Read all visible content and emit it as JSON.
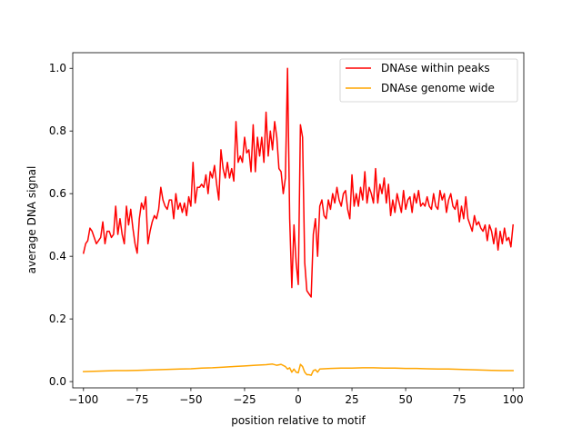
{
  "chart_data": {
    "type": "line",
    "title": "",
    "xlabel": "position relative to motif",
    "ylabel": "average DNA signal",
    "xlim": [
      -105,
      105
    ],
    "ylim": [
      -0.02,
      1.05
    ],
    "xticks": [
      -100,
      -75,
      -50,
      -25,
      0,
      25,
      50,
      75,
      100
    ],
    "xtick_labels": [
      "−100",
      "−75",
      "−50",
      "−25",
      "0",
      "25",
      "50",
      "75",
      "100"
    ],
    "yticks": [
      0.0,
      0.2,
      0.4,
      0.6,
      0.8,
      1.0
    ],
    "ytick_labels": [
      "0.0",
      "0.2",
      "0.4",
      "0.6",
      "0.8",
      "1.0"
    ],
    "grid": false,
    "legend_position": "top-right",
    "series": [
      {
        "name": "DNAse within peaks",
        "color": "#ff0000",
        "points": [
          [
            -100,
            0.41
          ],
          [
            -99,
            0.44
          ],
          [
            -98,
            0.45
          ],
          [
            -97,
            0.49
          ],
          [
            -96,
            0.48
          ],
          [
            -95,
            0.46
          ],
          [
            -94,
            0.44
          ],
          [
            -93,
            0.45
          ],
          [
            -92,
            0.46
          ],
          [
            -91,
            0.51
          ],
          [
            -90,
            0.44
          ],
          [
            -89,
            0.48
          ],
          [
            -88,
            0.48
          ],
          [
            -87,
            0.46
          ],
          [
            -86,
            0.47
          ],
          [
            -85,
            0.56
          ],
          [
            -84,
            0.47
          ],
          [
            -83,
            0.52
          ],
          [
            -82,
            0.47
          ],
          [
            -81,
            0.44
          ],
          [
            -80,
            0.56
          ],
          [
            -79,
            0.5
          ],
          [
            -78,
            0.55
          ],
          [
            -77,
            0.49
          ],
          [
            -76,
            0.44
          ],
          [
            -75,
            0.41
          ],
          [
            -74,
            0.52
          ],
          [
            -73,
            0.57
          ],
          [
            -72,
            0.55
          ],
          [
            -71,
            0.59
          ],
          [
            -70,
            0.44
          ],
          [
            -69,
            0.48
          ],
          [
            -68,
            0.51
          ],
          [
            -67,
            0.53
          ],
          [
            -66,
            0.52
          ],
          [
            -65,
            0.55
          ],
          [
            -64,
            0.62
          ],
          [
            -63,
            0.58
          ],
          [
            -62,
            0.56
          ],
          [
            -61,
            0.55
          ],
          [
            -60,
            0.58
          ],
          [
            -59,
            0.58
          ],
          [
            -58,
            0.52
          ],
          [
            -57,
            0.6
          ],
          [
            -56,
            0.55
          ],
          [
            -55,
            0.57
          ],
          [
            -54,
            0.54
          ],
          [
            -53,
            0.57
          ],
          [
            -52,
            0.53
          ],
          [
            -51,
            0.59
          ],
          [
            -50,
            0.56
          ],
          [
            -49,
            0.7
          ],
          [
            -48,
            0.57
          ],
          [
            -47,
            0.62
          ],
          [
            -46,
            0.62
          ],
          [
            -45,
            0.63
          ],
          [
            -44,
            0.62
          ],
          [
            -43,
            0.66
          ],
          [
            -42,
            0.6
          ],
          [
            -41,
            0.67
          ],
          [
            -40,
            0.65
          ],
          [
            -39,
            0.69
          ],
          [
            -38,
            0.63
          ],
          [
            -37,
            0.58
          ],
          [
            -36,
            0.74
          ],
          [
            -35,
            0.68
          ],
          [
            -34,
            0.65
          ],
          [
            -33,
            0.7
          ],
          [
            -32,
            0.65
          ],
          [
            -31,
            0.68
          ],
          [
            -30,
            0.64
          ],
          [
            -29,
            0.83
          ],
          [
            -28,
            0.7
          ],
          [
            -27,
            0.72
          ],
          [
            -26,
            0.7
          ],
          [
            -25,
            0.78
          ],
          [
            -24,
            0.73
          ],
          [
            -23,
            0.74
          ],
          [
            -22,
            0.67
          ],
          [
            -21,
            0.82
          ],
          [
            -20,
            0.67
          ],
          [
            -19,
            0.78
          ],
          [
            -18,
            0.72
          ],
          [
            -17,
            0.78
          ],
          [
            -16,
            0.7
          ],
          [
            -15,
            0.86
          ],
          [
            -14,
            0.72
          ],
          [
            -13,
            0.8
          ],
          [
            -12,
            0.74
          ],
          [
            -11,
            0.83
          ],
          [
            -10,
            0.78
          ],
          [
            -9,
            0.68
          ],
          [
            -8,
            0.67
          ],
          [
            -7,
            0.6
          ],
          [
            -6,
            0.65
          ],
          [
            -5,
            1.0
          ],
          [
            -4,
            0.52
          ],
          [
            -3,
            0.3
          ],
          [
            -2,
            0.5
          ],
          [
            -1,
            0.38
          ],
          [
            0,
            0.31
          ],
          [
            1,
            0.82
          ],
          [
            2,
            0.78
          ],
          [
            3,
            0.38
          ],
          [
            4,
            0.29
          ],
          [
            5,
            0.28
          ],
          [
            6,
            0.27
          ],
          [
            7,
            0.47
          ],
          [
            8,
            0.52
          ],
          [
            9,
            0.4
          ],
          [
            10,
            0.56
          ],
          [
            11,
            0.58
          ],
          [
            12,
            0.53
          ],
          [
            13,
            0.52
          ],
          [
            14,
            0.58
          ],
          [
            15,
            0.55
          ],
          [
            16,
            0.6
          ],
          [
            17,
            0.57
          ],
          [
            18,
            0.62
          ],
          [
            19,
            0.58
          ],
          [
            20,
            0.56
          ],
          [
            21,
            0.6
          ],
          [
            22,
            0.61
          ],
          [
            23,
            0.55
          ],
          [
            24,
            0.52
          ],
          [
            25,
            0.66
          ],
          [
            26,
            0.56
          ],
          [
            27,
            0.6
          ],
          [
            28,
            0.56
          ],
          [
            29,
            0.62
          ],
          [
            30,
            0.58
          ],
          [
            31,
            0.67
          ],
          [
            32,
            0.57
          ],
          [
            33,
            0.62
          ],
          [
            34,
            0.6
          ],
          [
            35,
            0.57
          ],
          [
            36,
            0.68
          ],
          [
            37,
            0.57
          ],
          [
            38,
            0.63
          ],
          [
            39,
            0.6
          ],
          [
            40,
            0.65
          ],
          [
            41,
            0.57
          ],
          [
            42,
            0.63
          ],
          [
            43,
            0.53
          ],
          [
            44,
            0.58
          ],
          [
            45,
            0.54
          ],
          [
            46,
            0.6
          ],
          [
            47,
            0.57
          ],
          [
            48,
            0.54
          ],
          [
            49,
            0.61
          ],
          [
            50,
            0.55
          ],
          [
            51,
            0.58
          ],
          [
            52,
            0.59
          ],
          [
            53,
            0.54
          ],
          [
            54,
            0.6
          ],
          [
            55,
            0.57
          ],
          [
            56,
            0.61
          ],
          [
            57,
            0.56
          ],
          [
            58,
            0.57
          ],
          [
            59,
            0.56
          ],
          [
            60,
            0.59
          ],
          [
            61,
            0.56
          ],
          [
            62,
            0.55
          ],
          [
            63,
            0.6
          ],
          [
            64,
            0.56
          ],
          [
            65,
            0.55
          ],
          [
            66,
            0.61
          ],
          [
            67,
            0.58
          ],
          [
            68,
            0.6
          ],
          [
            69,
            0.54
          ],
          [
            70,
            0.58
          ],
          [
            71,
            0.6
          ],
          [
            72,
            0.56
          ],
          [
            73,
            0.55
          ],
          [
            74,
            0.58
          ],
          [
            75,
            0.51
          ],
          [
            76,
            0.56
          ],
          [
            77,
            0.52
          ],
          [
            78,
            0.59
          ],
          [
            79,
            0.52
          ],
          [
            80,
            0.5
          ],
          [
            81,
            0.48
          ],
          [
            82,
            0.53
          ],
          [
            83,
            0.5
          ],
          [
            84,
            0.51
          ],
          [
            85,
            0.49
          ],
          [
            86,
            0.48
          ],
          [
            87,
            0.5
          ],
          [
            88,
            0.45
          ],
          [
            89,
            0.5
          ],
          [
            90,
            0.48
          ],
          [
            91,
            0.44
          ],
          [
            92,
            0.49
          ],
          [
            93,
            0.42
          ],
          [
            94,
            0.48
          ],
          [
            95,
            0.44
          ],
          [
            96,
            0.49
          ],
          [
            97,
            0.45
          ],
          [
            98,
            0.46
          ],
          [
            99,
            0.43
          ],
          [
            100,
            0.5
          ]
        ]
      },
      {
        "name": "DNAse genome wide",
        "color": "#ffa500",
        "points": [
          [
            -100,
            0.032
          ],
          [
            -95,
            0.033
          ],
          [
            -90,
            0.034
          ],
          [
            -85,
            0.035
          ],
          [
            -80,
            0.035
          ],
          [
            -75,
            0.036
          ],
          [
            -70,
            0.037
          ],
          [
            -65,
            0.038
          ],
          [
            -60,
            0.039
          ],
          [
            -55,
            0.04
          ],
          [
            -50,
            0.041
          ],
          [
            -45,
            0.043
          ],
          [
            -40,
            0.044
          ],
          [
            -35,
            0.046
          ],
          [
            -30,
            0.048
          ],
          [
            -25,
            0.05
          ],
          [
            -20,
            0.052
          ],
          [
            -15,
            0.054
          ],
          [
            -12,
            0.056
          ],
          [
            -10,
            0.052
          ],
          [
            -8,
            0.055
          ],
          [
            -6,
            0.048
          ],
          [
            -5,
            0.04
          ],
          [
            -4,
            0.044
          ],
          [
            -3,
            0.03
          ],
          [
            -2,
            0.04
          ],
          [
            -1,
            0.03
          ],
          [
            0,
            0.028
          ],
          [
            1,
            0.055
          ],
          [
            2,
            0.048
          ],
          [
            3,
            0.03
          ],
          [
            4,
            0.022
          ],
          [
            5,
            0.022
          ],
          [
            6,
            0.02
          ],
          [
            7,
            0.035
          ],
          [
            8,
            0.038
          ],
          [
            9,
            0.03
          ],
          [
            10,
            0.04
          ],
          [
            15,
            0.042
          ],
          [
            20,
            0.043
          ],
          [
            25,
            0.043
          ],
          [
            30,
            0.044
          ],
          [
            35,
            0.044
          ],
          [
            40,
            0.043
          ],
          [
            45,
            0.043
          ],
          [
            50,
            0.042
          ],
          [
            55,
            0.042
          ],
          [
            60,
            0.041
          ],
          [
            65,
            0.04
          ],
          [
            70,
            0.04
          ],
          [
            75,
            0.039
          ],
          [
            80,
            0.038
          ],
          [
            85,
            0.037
          ],
          [
            90,
            0.036
          ],
          [
            95,
            0.035
          ],
          [
            100,
            0.035
          ]
        ]
      }
    ]
  }
}
